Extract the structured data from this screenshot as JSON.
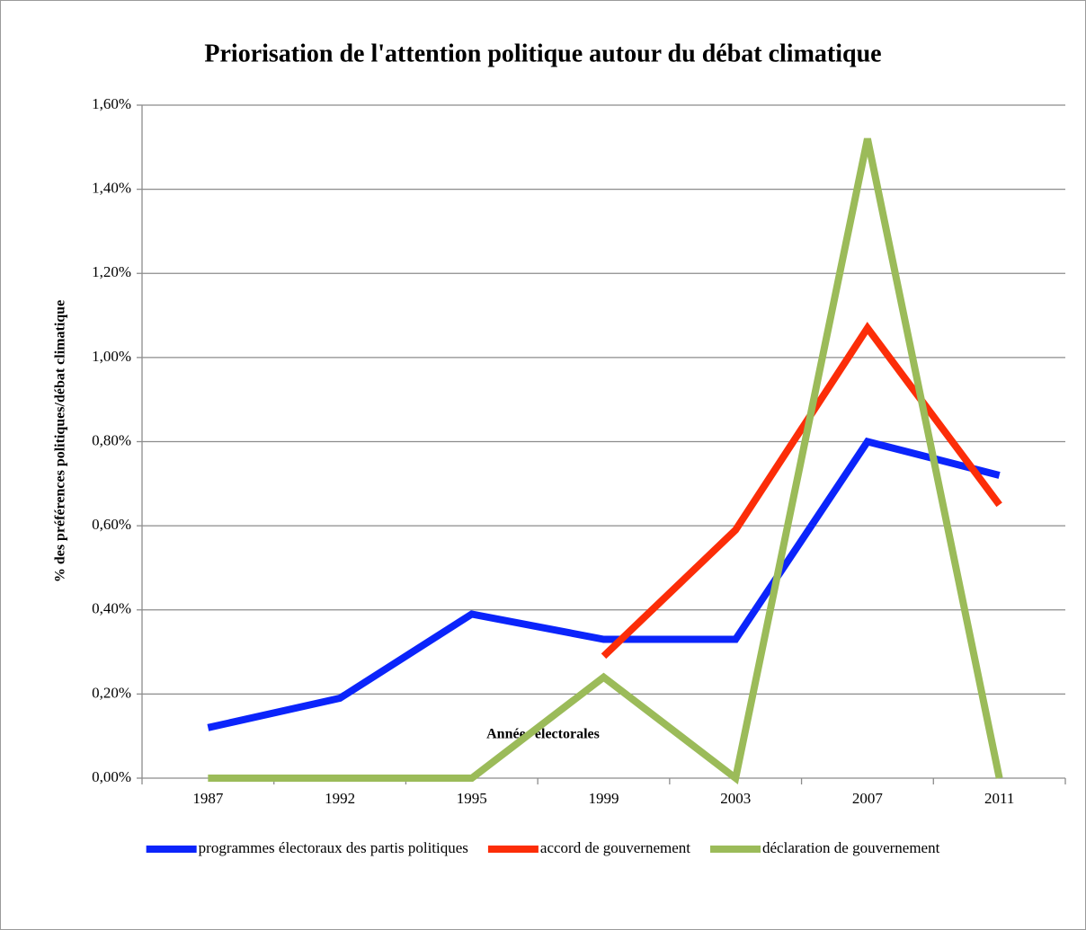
{
  "chart_data": {
    "type": "line",
    "title": "Priorisation de l'attention politique autour du débat climatique",
    "x_label": "Années électorales",
    "y_label": "% des préférences politiques/débat climatique",
    "categories": [
      "1987",
      "1992",
      "1995",
      "1999",
      "2003",
      "2007",
      "2011"
    ],
    "series": [
      {
        "name": "programmes électoraux des partis politiques",
        "color": "#0b24fb",
        "values": [
          0.12,
          0.19,
          0.39,
          0.33,
          0.33,
          0.8,
          0.72
        ]
      },
      {
        "name": "accord de gouvernement",
        "color": "#fc2d08",
        "values": [
          null,
          null,
          null,
          0.29,
          0.59,
          1.07,
          0.65
        ]
      },
      {
        "name": "déclaration de gouvernement",
        "color": "#9bbb59",
        "values": [
          0,
          0,
          0,
          0.24,
          0,
          1.52,
          0
        ]
      }
    ],
    "ylim": [
      0,
      1.6
    ],
    "yticks": [
      {
        "value": 0,
        "label": "0,00%"
      },
      {
        "value": 0.2,
        "label": "0,20%"
      },
      {
        "value": 0.4,
        "label": "0,40%"
      },
      {
        "value": 0.6,
        "label": "0,60%"
      },
      {
        "value": 0.8,
        "label": "0,80%"
      },
      {
        "value": 1.0,
        "label": "1,00%"
      },
      {
        "value": 1.2,
        "label": "1,20%"
      },
      {
        "value": 1.4,
        "label": "1,40%"
      },
      {
        "value": 1.6,
        "label": "1,60%"
      }
    ],
    "grid": true,
    "legend": "bottom"
  }
}
